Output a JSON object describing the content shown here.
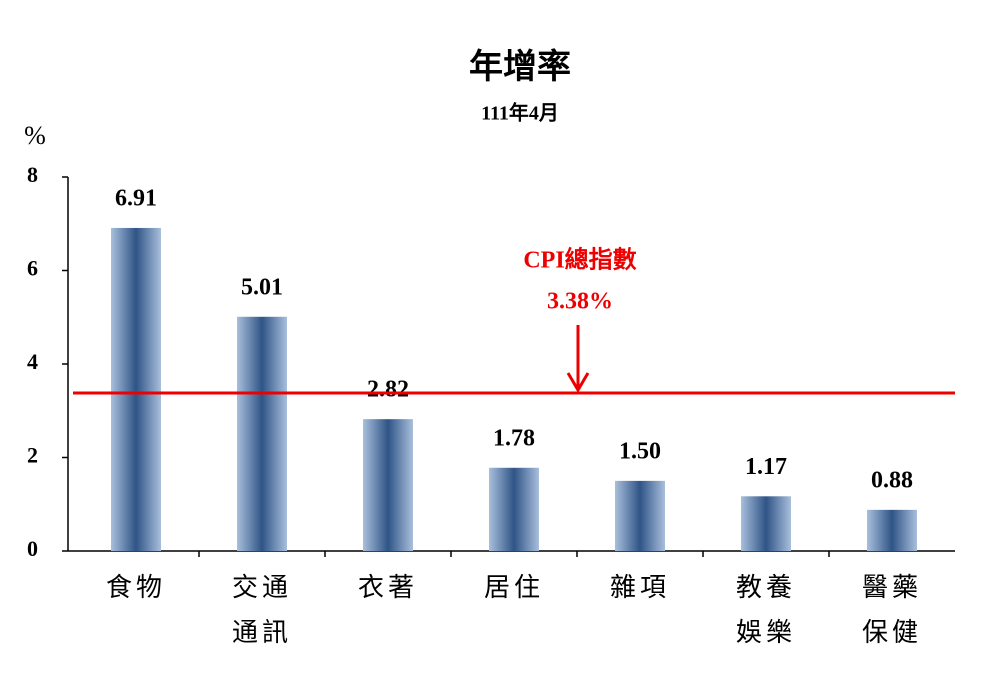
{
  "chart_data": {
    "type": "bar",
    "title": "年增率",
    "subtitle": "111年4月",
    "y_label": "%",
    "categories": [
      [
        "食物"
      ],
      [
        "交通",
        "通訊"
      ],
      [
        "衣著"
      ],
      [
        "居住"
      ],
      [
        "雜項"
      ],
      [
        "教養",
        "娛樂"
      ],
      [
        "醫藥",
        "保健"
      ]
    ],
    "values": [
      6.91,
      5.01,
      2.82,
      1.78,
      1.5,
      1.17,
      0.88
    ],
    "value_labels": [
      "6.91",
      "5.01",
      "2.82",
      "1.78",
      "1.50",
      "1.17",
      "0.88"
    ],
    "color": "#2f5486",
    "ylim": [
      0,
      8
    ],
    "yticks": [
      0,
      2,
      4,
      6,
      8
    ],
    "reference_line": {
      "value": 3.38,
      "label": "CPI總指數",
      "value_label": "3.38%",
      "color": "#ee0000"
    }
  }
}
